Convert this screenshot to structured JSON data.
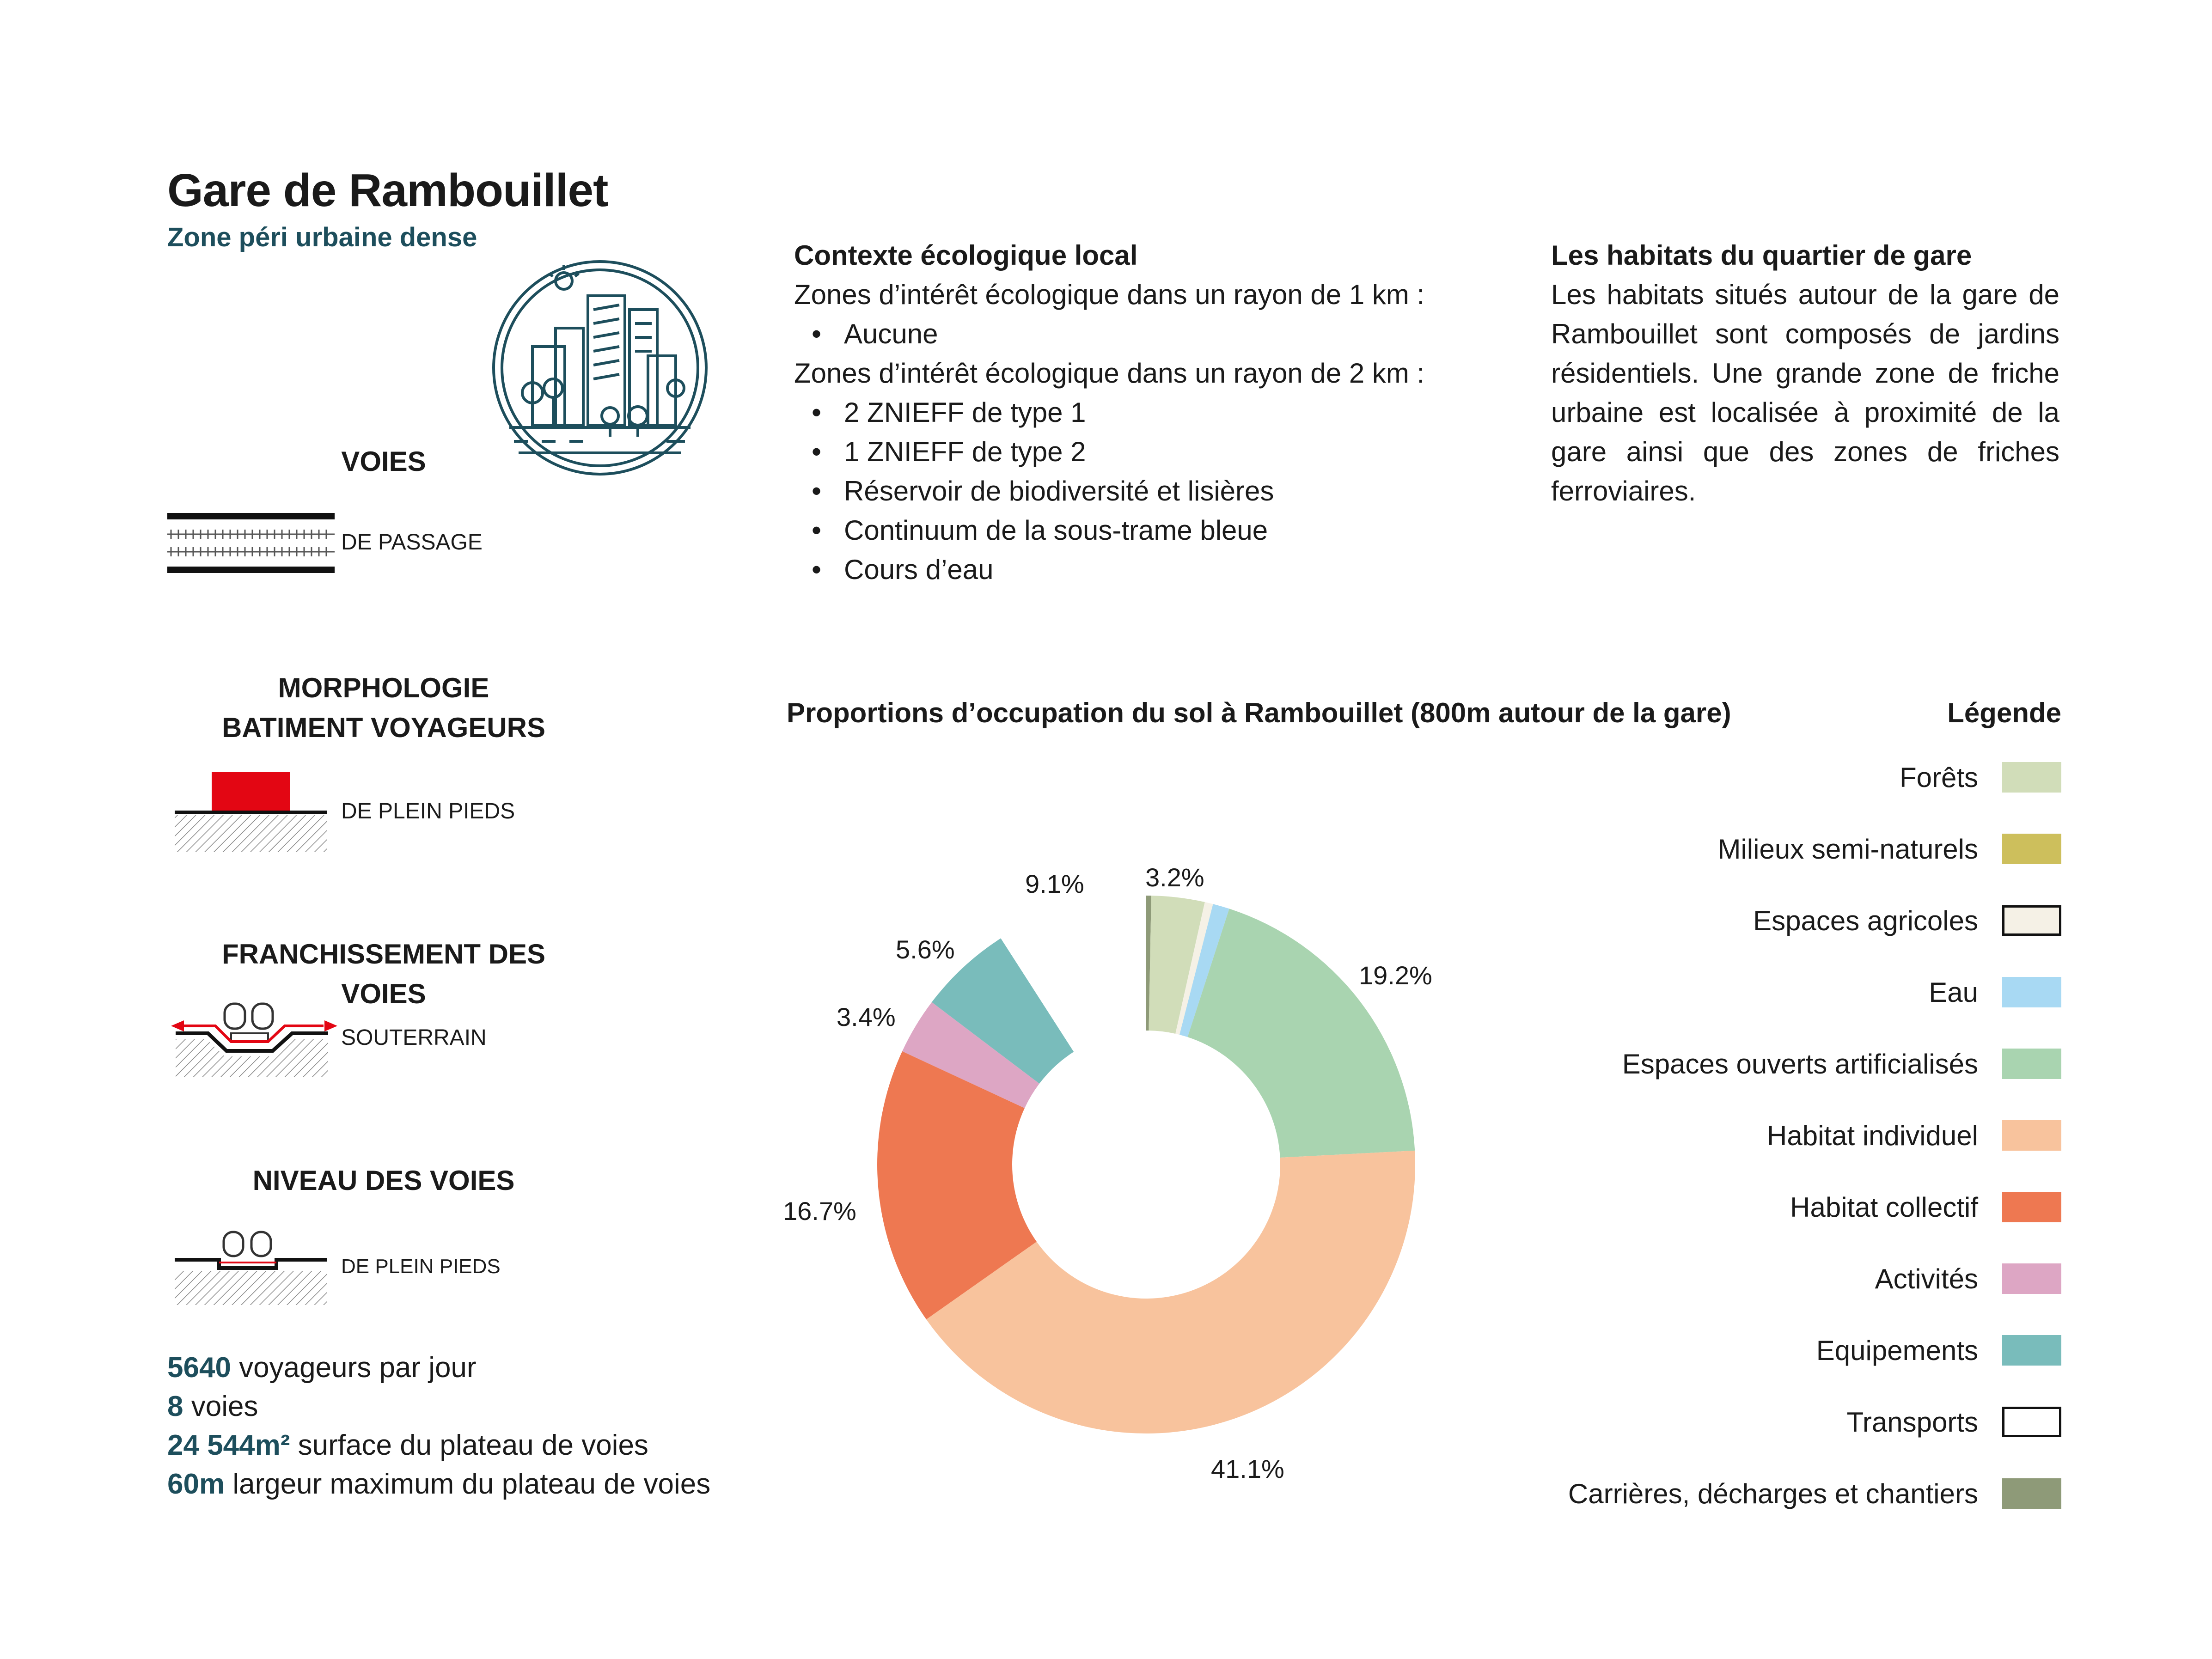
{
  "header": {
    "title": "Gare de Rambouillet",
    "subtitle": "Zone péri urbaine dense"
  },
  "station_icon": "city-buildings-icon",
  "voies": {
    "heading": "VOIES",
    "label": "DE PASSAGE"
  },
  "morphologie": {
    "heading_line1": "MORPHOLOGIE",
    "heading_line2": "BATIMENT VOYAGEURS",
    "label": "DE PLEIN PIEDS",
    "accent_color": "#e30613"
  },
  "franchissement": {
    "heading": "FRANCHISSEMENT DES VOIES",
    "label": "SOUTERRAIN"
  },
  "niveau": {
    "heading": "NIVEAU DES VOIES",
    "label": "DE PLEIN PIEDS"
  },
  "stats": [
    {
      "value": "5640",
      "text": " voyageurs par jour"
    },
    {
      "value": "8",
      "text": " voies"
    },
    {
      "value": "24 544m²",
      "text": " surface du plateau de voies"
    },
    {
      "value": "60m",
      "text": " largeur maximum du plateau de voies"
    }
  ],
  "contexte": {
    "heading": "Contexte écologique local",
    "line1": "Zones d’intérêt écologique dans un rayon de 1 km :",
    "list1": [
      "Aucune"
    ],
    "line2": "Zones d’intérêt écologique dans un rayon de 2 km :",
    "list2": [
      "2 ZNIEFF de type 1",
      "1 ZNIEFF de type 2",
      "Réservoir de biodiversité et lisières",
      "Continuum de la sous-trame bleue",
      "Cours d’eau"
    ]
  },
  "habitats": {
    "heading": "Les habitats du quartier de gare",
    "text": "Les habitats situés autour de la gare de Rambouillet sont composés de jardins résidentiels. Une grande zone de friche urbaine est localisée à proximité de la gare ainsi que des zones de friches ferroviaires."
  },
  "chart_data": {
    "type": "pie",
    "donut": true,
    "title": "Proportions d’occupation du sol à Rambouillet (800m autour de la gare)",
    "legend_title": "Légende",
    "legend_placement": "right",
    "slices": [
      {
        "name": "Carrières, décharges et chantiers",
        "value": 0.3,
        "color": "#8e9a78",
        "label": ""
      },
      {
        "name": "Forêts",
        "value": 3.2,
        "color": "#d1ddb9",
        "label": "3.2%"
      },
      {
        "name": "Espaces agricoles",
        "value": 0.5,
        "color": "#f5f1e6",
        "label": ""
      },
      {
        "name": "Eau",
        "value": 1.0,
        "color": "#a8d9f3",
        "label": ""
      },
      {
        "name": "Espaces ouverts artificialisés",
        "value": 19.2,
        "color": "#a9d4b0",
        "label": "19.2%"
      },
      {
        "name": "Habitat individuel",
        "value": 41.1,
        "color": "#f8c39d",
        "label": "41.1%"
      },
      {
        "name": "Habitat collectif",
        "value": 16.7,
        "color": "#ee7851",
        "label": "16.7%"
      },
      {
        "name": "Activités",
        "value": 3.4,
        "color": "#dda6c4",
        "label": "3.4%"
      },
      {
        "name": "Equipements",
        "value": 5.6,
        "color": "#79bcbb",
        "label": "5.6%"
      },
      {
        "name": "Transports",
        "value": 9.1,
        "color": "#ffffff",
        "label": "9.1%"
      }
    ],
    "legend": [
      {
        "name": "Forêts",
        "color": "#d1ddb9",
        "border": false
      },
      {
        "name": "Milieux semi-naturels",
        "color": "#cdbf5c",
        "border": false
      },
      {
        "name": "Espaces agricoles",
        "color": "#f5f1e6",
        "border": true
      },
      {
        "name": "Eau",
        "color": "#a8d9f3",
        "border": false
      },
      {
        "name": "Espaces ouverts artificialisés",
        "color": "#a9d4b0",
        "border": false
      },
      {
        "name": "Habitat individuel",
        "color": "#f8c39d",
        "border": false
      },
      {
        "name": "Habitat collectif",
        "color": "#ee7851",
        "border": false
      },
      {
        "name": "Activités",
        "color": "#dda6c4",
        "border": false
      },
      {
        "name": "Equipements",
        "color": "#79bcbb",
        "border": false
      },
      {
        "name": "Transports",
        "color": "#ffffff",
        "border": true
      },
      {
        "name": "Carrières, décharges et chantiers",
        "color": "#8e9a78",
        "border": false
      }
    ]
  }
}
